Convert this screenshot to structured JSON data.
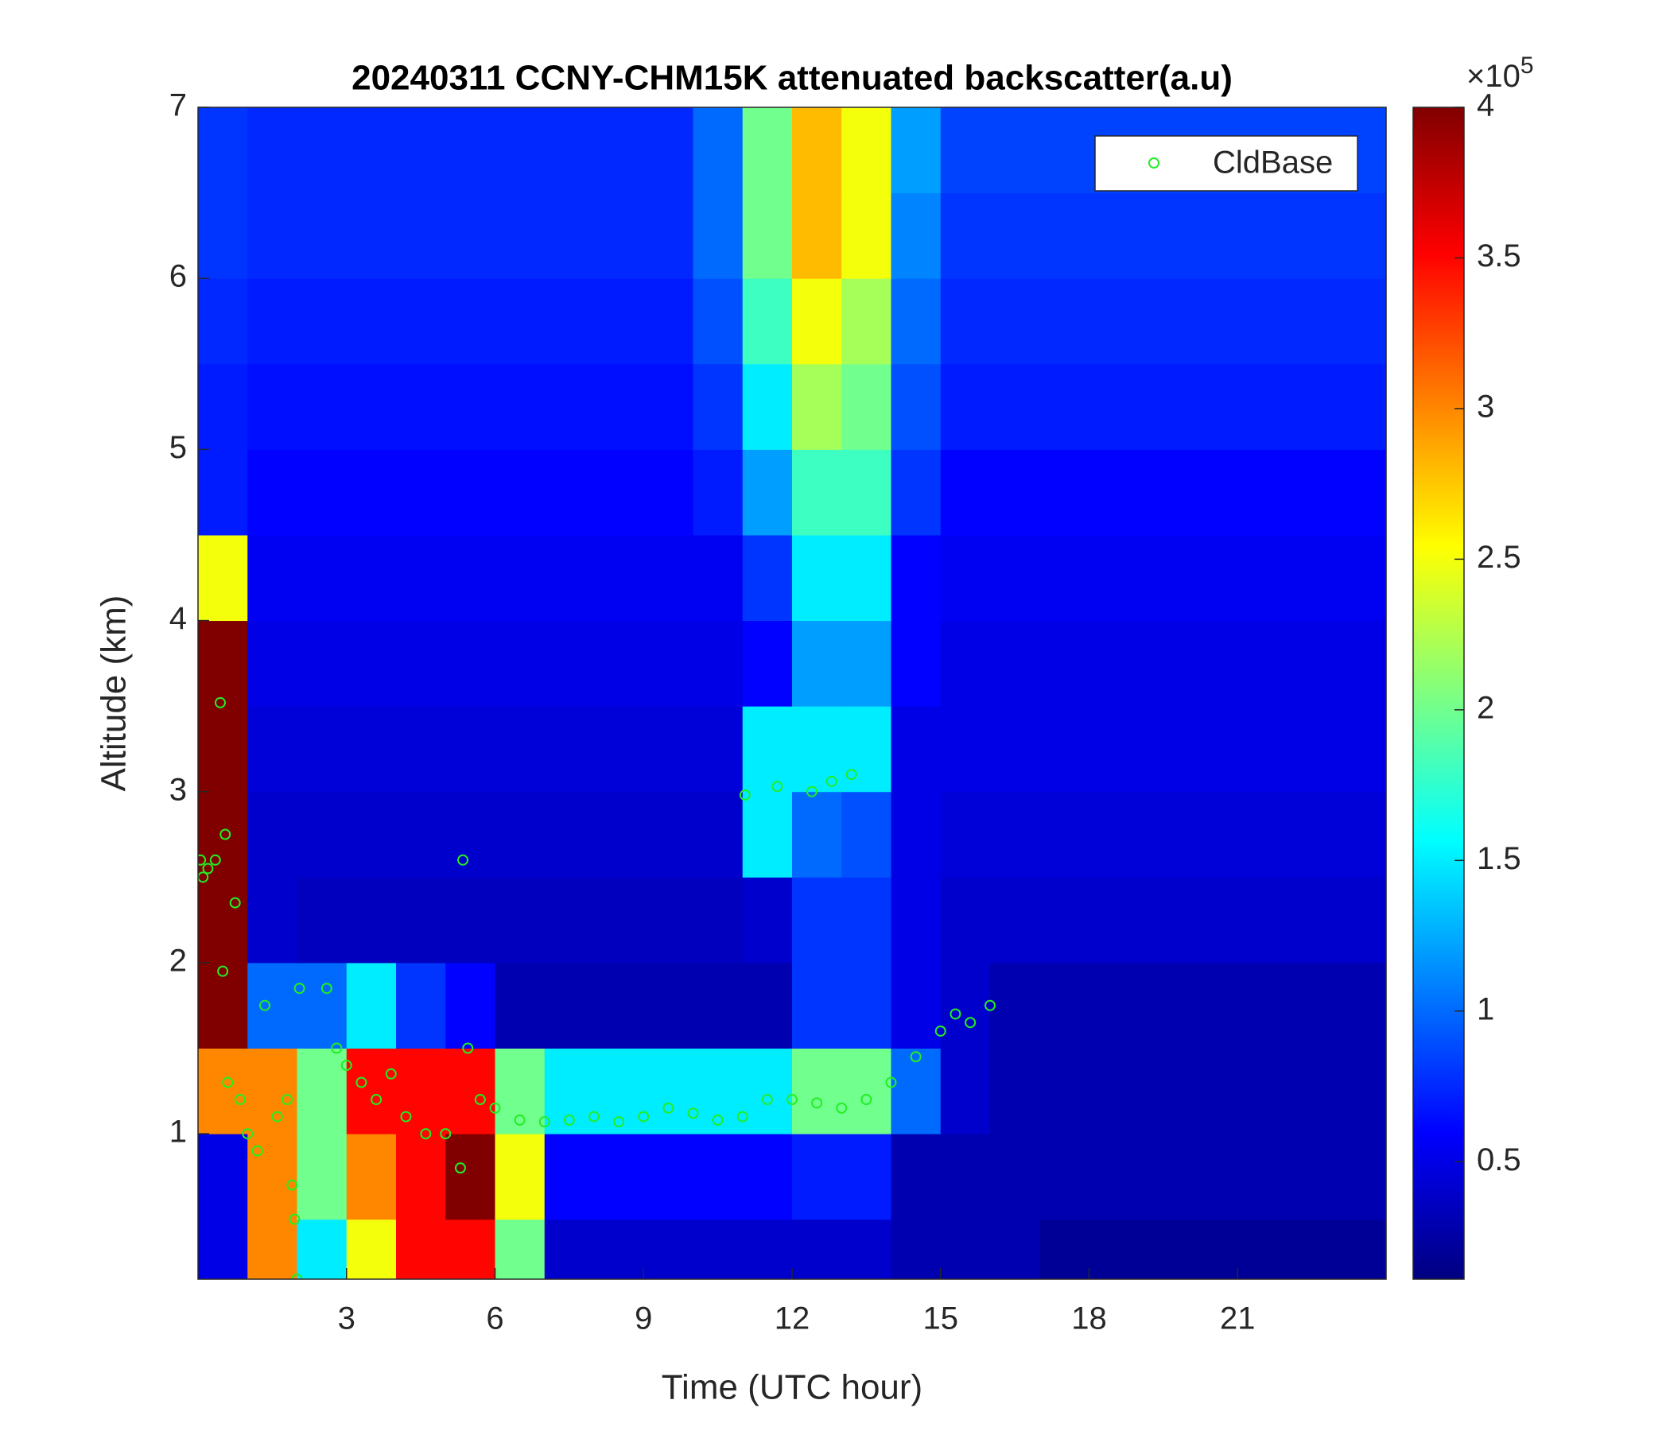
{
  "chart_data": {
    "type": "heatmap",
    "title": "20240311 CCNY-CHM15K attenuated backscatter(a.u)",
    "xlabel": "Time (UTC hour)",
    "ylabel": "Altitude (km)",
    "xlim": [
      0,
      24
    ],
    "ylim": [
      0.15,
      7
    ],
    "xticks": [
      3,
      6,
      9,
      12,
      15,
      18,
      21
    ],
    "yticks": [
      1,
      2,
      3,
      4,
      5,
      6,
      7
    ],
    "colormap": "jet",
    "clim": [
      0.11,
      4
    ],
    "colorbar_ticks": [
      0.5,
      1,
      1.5,
      2,
      2.5,
      3,
      3.5,
      4
    ],
    "colorbar_exponent": {
      "base": "×10",
      "power": "5"
    },
    "x_edges": [
      0,
      1,
      2,
      3,
      4,
      5,
      6,
      7,
      8,
      9,
      10,
      11,
      12,
      13,
      14,
      15,
      16,
      17,
      18,
      19,
      20,
      21,
      22,
      23,
      24
    ],
    "y_edges": [
      0.15,
      0.5,
      1,
      1.5,
      2,
      2.5,
      3,
      3.5,
      4,
      4.5,
      5,
      5.5,
      6,
      6.5,
      7
    ],
    "z": [
      [
        0.5,
        3,
        1.5,
        2.5,
        3.5,
        3.5,
        2,
        0.4,
        0.4,
        0.4,
        0.4,
        0.4,
        0.4,
        0.4,
        0.3,
        0.3,
        0.3,
        0.2,
        0.2,
        0.2,
        0.2,
        0.2,
        0.2,
        0.2
      ],
      [
        0.5,
        3,
        2,
        3,
        3.5,
        4,
        2.5,
        0.6,
        0.6,
        0.6,
        0.6,
        0.6,
        0.7,
        0.7,
        0.3,
        0.3,
        0.3,
        0.3,
        0.3,
        0.3,
        0.3,
        0.3,
        0.3,
        0.3
      ],
      [
        3,
        3,
        2,
        3.5,
        3.5,
        3.5,
        2,
        1.5,
        1.5,
        1.5,
        1.5,
        1.5,
        2,
        2,
        1,
        0.4,
        0.3,
        0.3,
        0.3,
        0.3,
        0.3,
        0.3,
        0.3,
        0.3
      ],
      [
        4,
        1,
        1,
        1.5,
        0.8,
        0.6,
        0.3,
        0.3,
        0.3,
        0.3,
        0.3,
        0.3,
        0.8,
        0.8,
        0.5,
        0.4,
        0.3,
        0.3,
        0.3,
        0.3,
        0.3,
        0.3,
        0.3,
        0.3
      ],
      [
        4,
        0.4,
        0.35,
        0.35,
        0.35,
        0.35,
        0.35,
        0.35,
        0.35,
        0.35,
        0.35,
        0.4,
        0.8,
        0.8,
        0.5,
        0.4,
        0.4,
        0.4,
        0.4,
        0.4,
        0.4,
        0.4,
        0.4,
        0.4
      ],
      [
        4,
        0.4,
        0.4,
        0.4,
        0.4,
        0.4,
        0.4,
        0.4,
        0.4,
        0.4,
        0.4,
        1.5,
        1,
        0.9,
        0.5,
        0.45,
        0.45,
        0.45,
        0.45,
        0.45,
        0.45,
        0.45,
        0.45,
        0.45
      ],
      [
        4,
        0.45,
        0.45,
        0.45,
        0.45,
        0.45,
        0.45,
        0.45,
        0.45,
        0.45,
        0.45,
        1.5,
        1.5,
        1.5,
        0.5,
        0.5,
        0.5,
        0.5,
        0.5,
        0.5,
        0.5,
        0.5,
        0.5,
        0.5
      ],
      [
        4,
        0.5,
        0.5,
        0.5,
        0.5,
        0.5,
        0.5,
        0.5,
        0.5,
        0.5,
        0.5,
        0.6,
        1.2,
        1.2,
        0.6,
        0.5,
        0.5,
        0.5,
        0.5,
        0.5,
        0.5,
        0.5,
        0.5,
        0.5
      ],
      [
        2.5,
        0.55,
        0.55,
        0.55,
        0.55,
        0.55,
        0.55,
        0.55,
        0.55,
        0.55,
        0.55,
        0.8,
        1.5,
        1.5,
        0.6,
        0.55,
        0.55,
        0.55,
        0.55,
        0.55,
        0.55,
        0.55,
        0.55,
        0.55
      ],
      [
        0.7,
        0.6,
        0.6,
        0.6,
        0.6,
        0.6,
        0.6,
        0.6,
        0.6,
        0.6,
        0.7,
        1.2,
        1.8,
        1.8,
        0.8,
        0.6,
        0.6,
        0.6,
        0.6,
        0.6,
        0.6,
        0.6,
        0.6,
        0.6
      ],
      [
        0.7,
        0.65,
        0.65,
        0.65,
        0.65,
        0.65,
        0.65,
        0.65,
        0.65,
        0.65,
        0.8,
        1.5,
        2.2,
        2,
        0.9,
        0.7,
        0.7,
        0.7,
        0.7,
        0.7,
        0.7,
        0.7,
        0.7,
        0.7
      ],
      [
        0.75,
        0.7,
        0.7,
        0.7,
        0.7,
        0.7,
        0.7,
        0.7,
        0.7,
        0.7,
        0.9,
        1.8,
        2.5,
        2.2,
        1,
        0.75,
        0.75,
        0.75,
        0.75,
        0.75,
        0.75,
        0.75,
        0.75,
        0.75
      ],
      [
        0.8,
        0.75,
        0.75,
        0.75,
        0.75,
        0.75,
        0.75,
        0.75,
        0.75,
        0.75,
        1,
        2,
        2.8,
        2.5,
        1.1,
        0.8,
        0.8,
        0.8,
        0.8,
        0.8,
        0.8,
        0.8,
        0.8,
        0.8
      ],
      [
        0.8,
        0.75,
        0.75,
        0.75,
        0.75,
        0.75,
        0.75,
        0.75,
        0.75,
        0.75,
        1,
        2,
        2.8,
        2.5,
        1.2,
        0.85,
        0.85,
        0.85,
        0.85,
        0.85,
        0.85,
        0.85,
        0.85,
        0.85
      ]
    ],
    "series": [
      {
        "name": "CldBase",
        "color": "#22ee22",
        "x": [
          0.05,
          0.1,
          0.2,
          0.35,
          0.45,
          0.5,
          0.55,
          0.6,
          0.75,
          0.85,
          1.0,
          1.2,
          1.35,
          1.6,
          1.8,
          1.9,
          1.95,
          2.0,
          2.05,
          2.6,
          2.8,
          3.0,
          3.3,
          3.6,
          3.9,
          4.2,
          4.6,
          5.0,
          5.3,
          5.35,
          5.45,
          5.7,
          6.0,
          6.5,
          7.0,
          7.5,
          8.0,
          8.5,
          9.0,
          9.5,
          10.0,
          10.5,
          11.0,
          11.05,
          11.5,
          11.7,
          12.0,
          12.4,
          12.5,
          12.8,
          13.0,
          13.2,
          13.5,
          14.0,
          14.5,
          15.0,
          15.3,
          15.6,
          16.0
        ],
        "values": [
          2.6,
          2.5,
          2.55,
          2.6,
          3.52,
          1.95,
          2.75,
          1.3,
          2.35,
          1.2,
          1.0,
          0.9,
          1.75,
          1.1,
          1.2,
          0.7,
          0.5,
          0.15,
          1.85,
          1.85,
          1.5,
          1.4,
          1.3,
          1.2,
          1.35,
          1.1,
          1.0,
          1.0,
          0.8,
          2.6,
          1.5,
          1.2,
          1.15,
          1.08,
          1.07,
          1.08,
          1.1,
          1.07,
          1.1,
          1.15,
          1.12,
          1.08,
          1.1,
          2.98,
          1.2,
          3.03,
          1.2,
          3.0,
          1.18,
          3.06,
          1.15,
          3.1,
          1.2,
          1.3,
          1.45,
          1.6,
          1.7,
          1.65,
          1.75
        ]
      }
    ]
  }
}
